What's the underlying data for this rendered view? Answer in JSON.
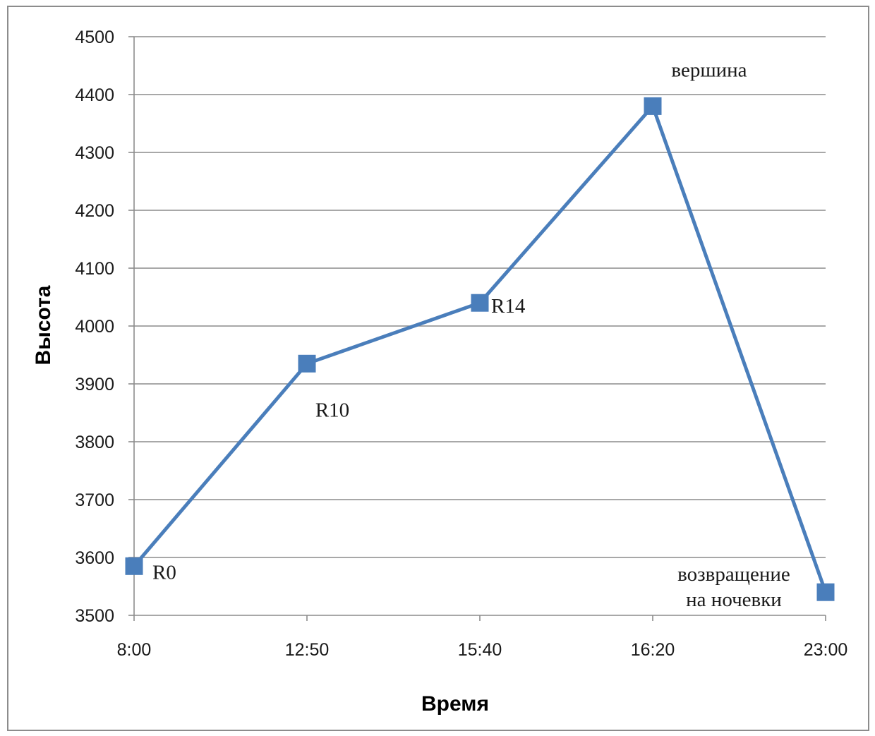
{
  "chart_data": {
    "type": "line",
    "xlabel": "Время",
    "ylabel": "Высота",
    "categories": [
      "8:00",
      "12:50",
      "15:40",
      "16:20",
      "23:00"
    ],
    "series": [
      {
        "values": [
          3585,
          3935,
          4040,
          4380,
          3540
        ]
      }
    ],
    "ylim": [
      3500,
      4500
    ],
    "yticks": [
      3500,
      3600,
      3700,
      3800,
      3900,
      4000,
      4100,
      4200,
      4300,
      4400,
      4500
    ],
    "grid": "horizontal",
    "annotations": [
      {
        "point": 0,
        "lines": [
          "R0"
        ]
      },
      {
        "point": 1,
        "lines": [
          "R10"
        ]
      },
      {
        "point": 2,
        "lines": [
          "R14"
        ]
      },
      {
        "point": 3,
        "lines": [
          "вершина"
        ]
      },
      {
        "point": 4,
        "lines": [
          "возвращение",
          "на ночевки"
        ]
      }
    ],
    "colors": {
      "line": "#4a7ebb",
      "marker": "#4a7ebb",
      "grid": "#8c8c8c",
      "axis": "#8c8c8c"
    }
  }
}
